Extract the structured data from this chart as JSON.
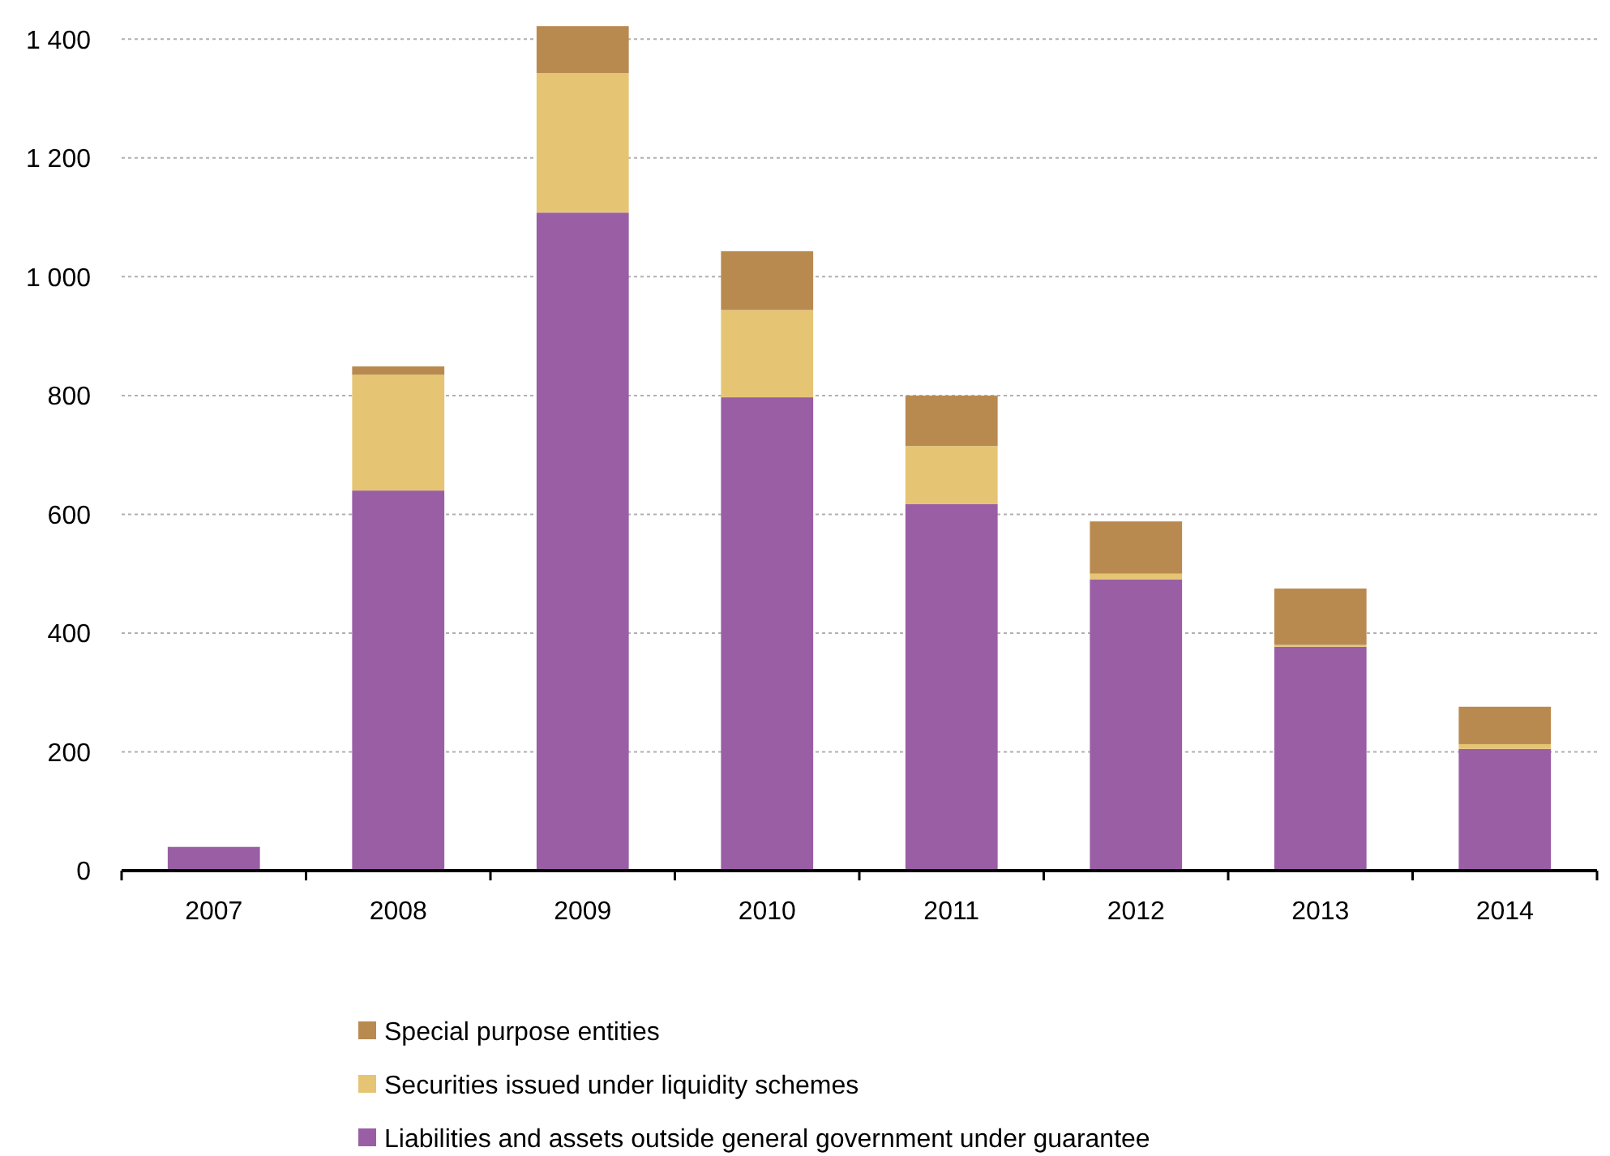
{
  "chart_data": {
    "type": "bar",
    "stacked": true,
    "categories": [
      "2007",
      "2008",
      "2009",
      "2010",
      "2011",
      "2012",
      "2013",
      "2014"
    ],
    "series": [
      {
        "name": "Liabilities and assets outside general government under guarantee",
        "color": "#9a5ea5",
        "values": [
          40,
          640,
          1108,
          797,
          617,
          490,
          377,
          205
        ]
      },
      {
        "name": "Securities issued under liquidity schemes",
        "color": "#e5c574",
        "values": [
          0,
          195,
          235,
          147,
          98,
          10,
          3,
          8
        ]
      },
      {
        "name": "Special purpose entities",
        "color": "#b98a4f",
        "values": [
          0,
          14,
          79,
          99,
          85,
          88,
          95,
          63
        ]
      }
    ],
    "ylim": [
      0,
      1425
    ],
    "yticks": [
      0,
      200,
      400,
      600,
      800,
      {
        "value": 1000,
        "label": "1 000"
      },
      {
        "value": 1200,
        "label": "1 200"
      },
      {
        "value": 1400,
        "label": "1 400"
      }
    ],
    "grid": "y",
    "legend": "bottom"
  }
}
